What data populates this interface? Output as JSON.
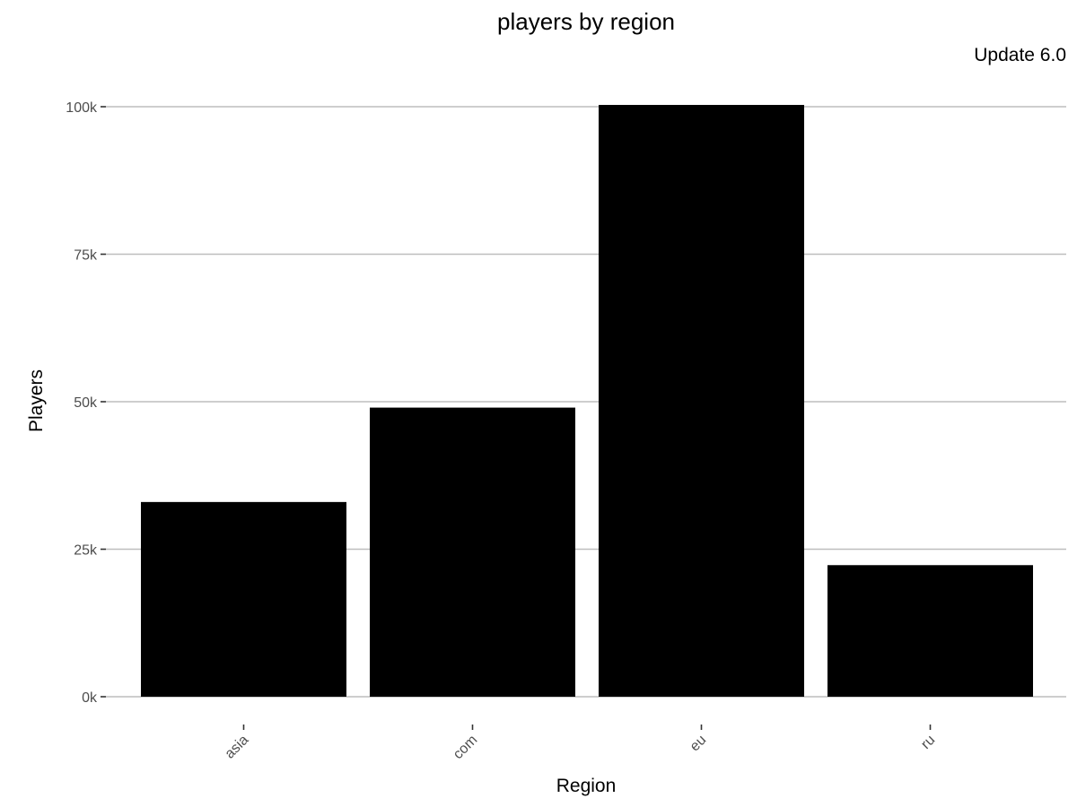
{
  "chart_data": {
    "type": "bar",
    "title": "players by region",
    "subtitle": "Update 6.0",
    "xlabel": "Region",
    "ylabel": "Players",
    "categories": [
      "asia",
      "com",
      "eu",
      "ru"
    ],
    "values": [
      33000,
      49000,
      100300,
      22300
    ],
    "ylim": [
      0,
      100000
    ],
    "yticks": [
      0,
      25000,
      50000,
      75000,
      100000
    ],
    "ytick_labels": [
      "0k",
      "25k",
      "50k",
      "75k",
      "100k"
    ],
    "bar_color": "#000000",
    "grid": true
  }
}
